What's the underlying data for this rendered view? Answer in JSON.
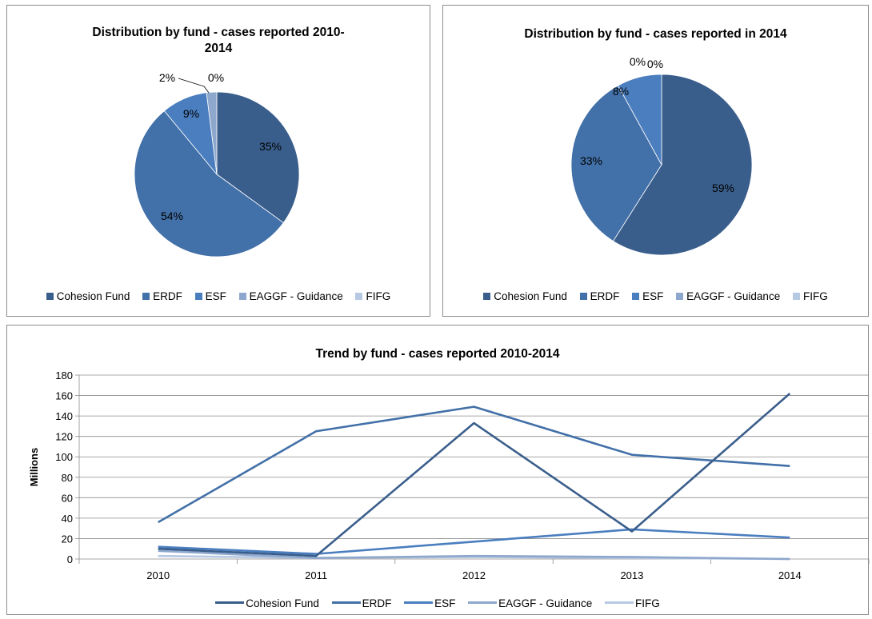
{
  "chart_data": [
    {
      "type": "pie",
      "title": "Distribution by fund - cases reported 2010-2014",
      "title_lines": [
        "Distribution by fund - cases reported 2010-",
        "2014"
      ],
      "labels": [
        "Cohesion Fund",
        "ERDF",
        "ESF",
        "EAGGF - Guidance",
        "FIFG"
      ],
      "values": [
        35,
        54,
        9,
        2,
        0
      ],
      "data_labels": [
        "35%",
        "54%",
        "9%",
        "2%",
        "0%"
      ],
      "legend": "bottom"
    },
    {
      "type": "pie",
      "title": "Distribution by fund - cases reported in 2014",
      "title_lines": [
        "Distribution by fund - cases reported in 2014"
      ],
      "labels": [
        "Cohesion Fund",
        "ERDF",
        "ESF",
        "EAGGF - Guidance",
        "FIFG"
      ],
      "values": [
        59,
        33,
        8,
        0,
        0
      ],
      "data_labels": [
        "59%",
        "33%",
        "8%",
        "0%",
        "0%"
      ],
      "legend": "bottom"
    },
    {
      "type": "line",
      "title": "Trend by fund - cases reported 2010-2014",
      "categories": [
        "2010",
        "2011",
        "2012",
        "2013",
        "2014"
      ],
      "ylabel": "Millions",
      "ylim": [
        0,
        180
      ],
      "yticks": [
        "0",
        "20",
        "40",
        "60",
        "80",
        "100",
        "120",
        "140",
        "160",
        "180"
      ],
      "grid": true,
      "legend": "bottom",
      "series": [
        {
          "name": "Cohesion Fund",
          "values": [
            10,
            3,
            133,
            27,
            162
          ]
        },
        {
          "name": "ERDF",
          "values": [
            36,
            125,
            149,
            102,
            91
          ]
        },
        {
          "name": "ESF",
          "values": [
            12,
            5,
            17,
            29,
            21
          ]
        },
        {
          "name": "EAGGF - Guidance",
          "values": [
            8,
            1,
            3,
            2,
            0
          ]
        },
        {
          "name": "FIFG",
          "values": [
            3,
            1,
            2,
            1,
            0
          ]
        }
      ]
    }
  ],
  "colors": {
    "pie": [
      "#3a5e8c",
      "#4270a8",
      "#4a7ebf",
      "#8ea7cc",
      "#b7c8e2"
    ],
    "line": [
      "#3a5e8c",
      "#4270a8",
      "#4a7ebf",
      "#8ea7cc",
      "#b7c8e2"
    ]
  }
}
